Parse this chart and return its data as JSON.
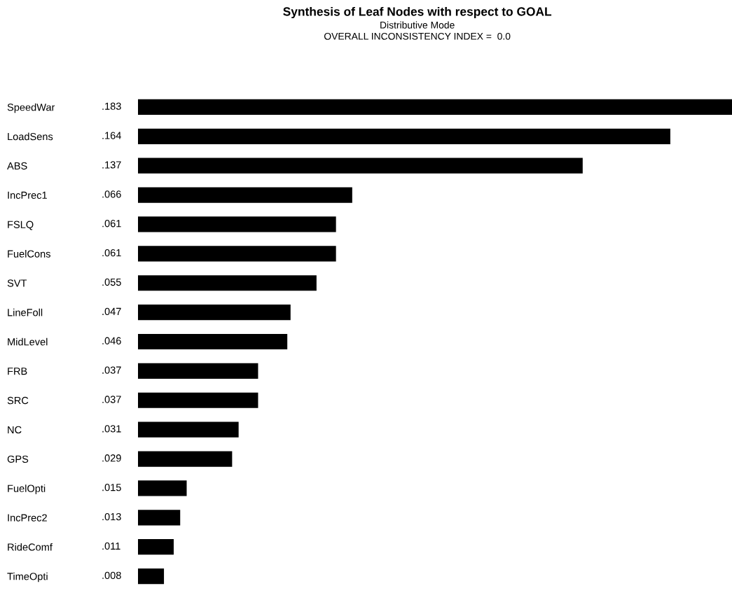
{
  "chart_data": {
    "type": "bar",
    "orientation": "horizontal",
    "title": "Synthesis of Leaf Nodes with respect to GOAL",
    "subtitle": "Distributive Mode",
    "annotations": [
      "OVERALL INCONSISTENCY INDEX =  0.0"
    ],
    "categories": [
      "SpeedWar",
      "LoadSens",
      "ABS",
      "IncPrec1",
      "FSLQ",
      "FuelCons",
      "SVT",
      "LineFoll",
      "MidLevel",
      "FRB",
      "SRC",
      "NC",
      "GPS",
      "FuelOpti",
      "IncPrec2",
      "RideComf",
      "TimeOpti"
    ],
    "values": [
      0.183,
      0.164,
      0.137,
      0.066,
      0.061,
      0.061,
      0.055,
      0.047,
      0.046,
      0.037,
      0.037,
      0.031,
      0.029,
      0.015,
      0.013,
      0.011,
      0.008
    ],
    "value_labels": [
      ".183",
      ".164",
      ".137",
      ".066",
      ".061",
      ".061",
      ".055",
      ".047",
      ".046",
      ".037",
      ".037",
      ".031",
      ".029",
      ".015",
      ".013",
      ".011",
      ".008"
    ],
    "color": "#000000"
  }
}
